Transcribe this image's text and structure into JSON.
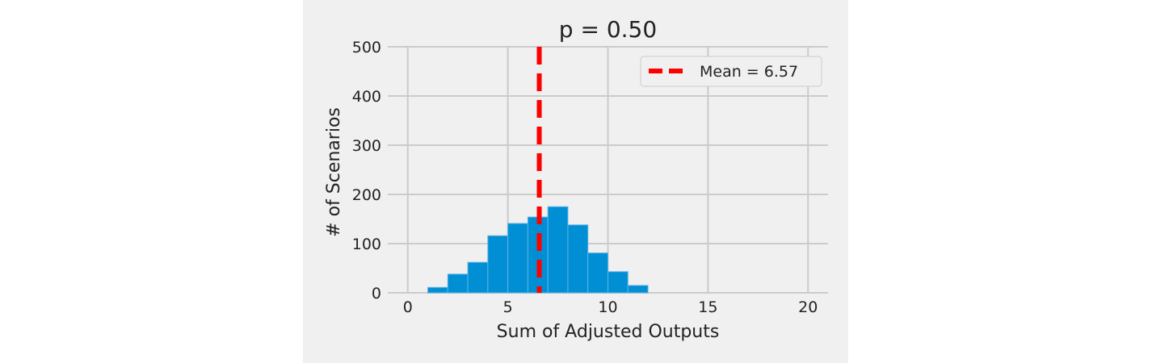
{
  "chart_data": {
    "type": "bar",
    "title": "p = 0.50",
    "xlabel": "Sum of Adjusted Outputs",
    "ylabel": "# of Scenarios",
    "xlim": [
      -1,
      21
    ],
    "ylim": [
      0,
      500
    ],
    "xticks": [
      0,
      5,
      10,
      15,
      20
    ],
    "yticks": [
      0,
      100,
      200,
      300,
      400,
      500
    ],
    "grid": true,
    "bin_edges": [
      1,
      2,
      3,
      4,
      5,
      6,
      7,
      8,
      9,
      10,
      11,
      12
    ],
    "values": [
      11,
      38,
      62,
      116,
      141,
      154,
      175,
      138,
      81,
      43,
      15
    ],
    "bar_color": "#008fd5",
    "mean_line": {
      "value": 6.57,
      "label": "Mean = 6.57",
      "color": "#ff0000",
      "style": "dashed"
    },
    "legend_placement": "top-right"
  }
}
